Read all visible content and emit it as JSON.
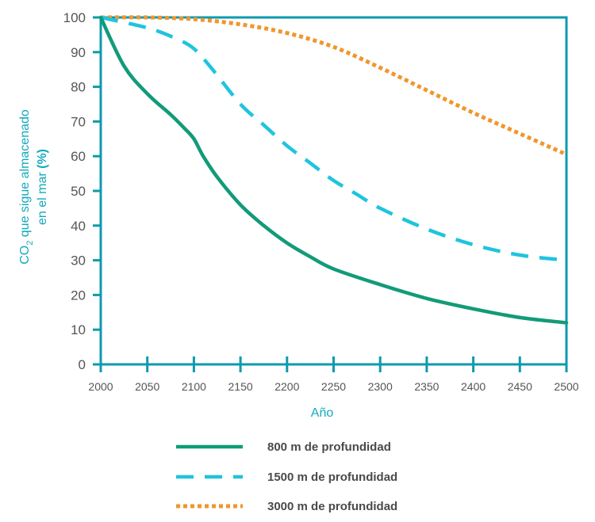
{
  "chart_data": {
    "type": "line",
    "title": "",
    "xlabel": "Año",
    "ylabel": {
      "line1_prefix": "CO",
      "line1_subscript": "2",
      "line1_suffix": " que sigue almacenado",
      "line2_prefix": "en el mar ",
      "line2_bold": "(%)"
    },
    "xlim": [
      2000,
      2500
    ],
    "ylim": [
      0,
      100
    ],
    "x_ticks": [
      2000,
      2050,
      2100,
      2150,
      2200,
      2250,
      2300,
      2350,
      2400,
      2450,
      2500
    ],
    "y_ticks": [
      0,
      10,
      20,
      30,
      40,
      50,
      60,
      70,
      80,
      90,
      100
    ],
    "grid": false,
    "legend_position": "bottom",
    "series": [
      {
        "name": "800 m de profundidad",
        "color": "#129b78",
        "style": "solid",
        "points": [
          [
            2000,
            100
          ],
          [
            2025,
            86
          ],
          [
            2050,
            78
          ],
          [
            2075,
            72
          ],
          [
            2090,
            68
          ],
          [
            2100,
            65
          ],
          [
            2110,
            60
          ],
          [
            2125,
            54
          ],
          [
            2150,
            46
          ],
          [
            2175,
            40
          ],
          [
            2200,
            35
          ],
          [
            2225,
            31
          ],
          [
            2250,
            27.5
          ],
          [
            2300,
            23
          ],
          [
            2350,
            19
          ],
          [
            2400,
            16
          ],
          [
            2450,
            13.5
          ],
          [
            2500,
            12
          ]
        ]
      },
      {
        "name": "1500 m de profundidad",
        "color": "#1fc4de",
        "style": "dashed",
        "points": [
          [
            2000,
            100
          ],
          [
            2050,
            97
          ],
          [
            2080,
            94
          ],
          [
            2100,
            91
          ],
          [
            2120,
            85
          ],
          [
            2150,
            75
          ],
          [
            2175,
            69
          ],
          [
            2200,
            63
          ],
          [
            2225,
            58
          ],
          [
            2250,
            53
          ],
          [
            2275,
            49
          ],
          [
            2300,
            45
          ],
          [
            2350,
            39
          ],
          [
            2400,
            34.5
          ],
          [
            2450,
            31.5
          ],
          [
            2500,
            30
          ]
        ]
      },
      {
        "name": "3000 m de profundidad",
        "color": "#f0962d",
        "style": "dotted",
        "points": [
          [
            2000,
            100
          ],
          [
            2050,
            100
          ],
          [
            2100,
            99.5
          ],
          [
            2150,
            98
          ],
          [
            2200,
            95.5
          ],
          [
            2250,
            91.5
          ],
          [
            2300,
            85.5
          ],
          [
            2350,
            79
          ],
          [
            2400,
            72.5
          ],
          [
            2450,
            66.5
          ],
          [
            2500,
            60.5
          ]
        ]
      }
    ]
  },
  "colors": {
    "axis": "#0e9aaf",
    "tick_label": "#555555",
    "axis_title": "#12a9bd"
  }
}
